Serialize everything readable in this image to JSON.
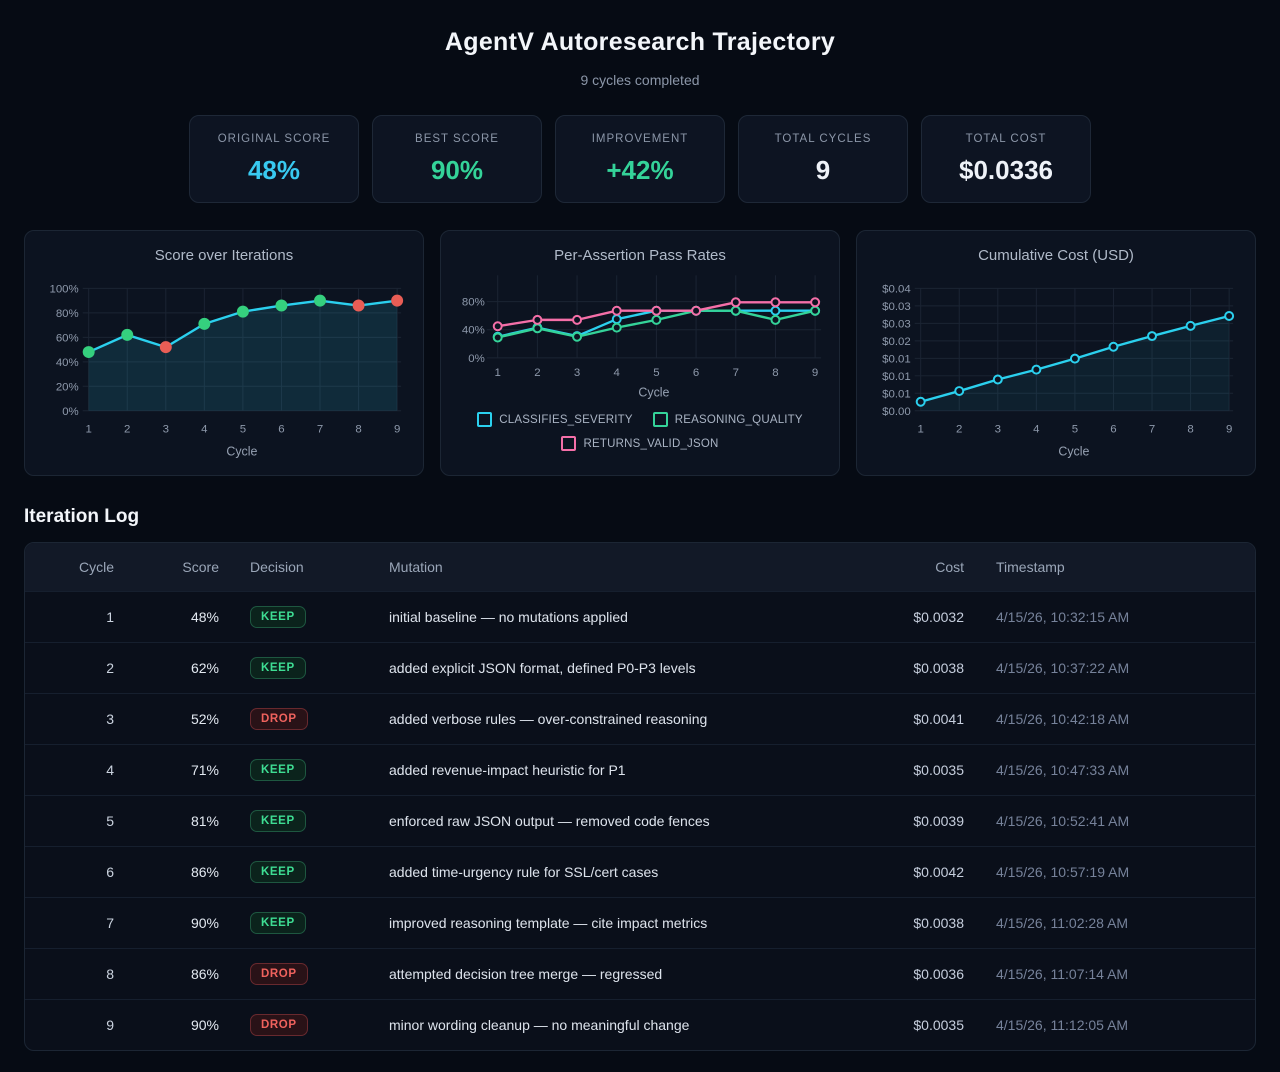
{
  "header": {
    "title": "AgentV Autoresearch Trajectory",
    "subtitle": "9 cycles completed"
  },
  "stats": [
    {
      "label": "ORIGINAL SCORE",
      "value": "48%",
      "color": "#38c9f0"
    },
    {
      "label": "BEST SCORE",
      "value": "90%",
      "color": "#34d399"
    },
    {
      "label": "IMPROVEMENT",
      "value": "+42%",
      "color": "#34d399"
    },
    {
      "label": "TOTAL CYCLES",
      "value": "9",
      "color": "#eef2f8"
    },
    {
      "label": "TOTAL COST",
      "value": "$0.0336",
      "color": "#eef2f8"
    }
  ],
  "chart_data": [
    {
      "type": "area",
      "title": "Score over Iterations",
      "xlabel": "Cycle",
      "x": [
        1,
        2,
        3,
        4,
        5,
        6,
        7,
        8,
        9
      ],
      "values": [
        48,
        62,
        52,
        71,
        81,
        86,
        90,
        86,
        90
      ],
      "ylim": [
        0,
        120
      ],
      "yticks": [
        {
          "v": 0,
          "label": "0%"
        },
        {
          "v": 20,
          "label": "20%"
        },
        {
          "v": 40,
          "label": "40%"
        },
        {
          "v": 60,
          "label": "60%"
        },
        {
          "v": 80,
          "label": "80%"
        },
        {
          "v": 100,
          "label": "100%"
        }
      ],
      "grid": true,
      "line_color": "#2bd0ee",
      "fill_color": "rgba(43,208,238,0.13)",
      "point_colors": [
        "#35d07e",
        "#35d07e",
        "#e85d55",
        "#35d07e",
        "#35d07e",
        "#35d07e",
        "#35d07e",
        "#e85d55",
        "#e85d55"
      ]
    },
    {
      "type": "line",
      "title": "Per-Assertion Pass Rates",
      "xlabel": "Cycle",
      "x": [
        1,
        2,
        3,
        4,
        5,
        6,
        7,
        8,
        9
      ],
      "ylim": [
        0,
        120
      ],
      "yticks": [
        {
          "v": 0,
          "label": "0%"
        },
        {
          "v": 40,
          "label": "40%"
        },
        {
          "v": 80,
          "label": "80%"
        }
      ],
      "grid": true,
      "legend_position": "bottom",
      "series": [
        {
          "name": "CLASSIFIES_SEVERITY",
          "color": "#2bd0ee",
          "values": [
            30,
            43,
            31,
            55,
            67,
            67,
            67,
            67,
            67
          ]
        },
        {
          "name": "REASONING_QUALITY",
          "color": "#34d399",
          "values": [
            29,
            42,
            30,
            43,
            54,
            67,
            67,
            54,
            67
          ]
        },
        {
          "name": "RETURNS_VALID_JSON",
          "color": "#f56fa8",
          "values": [
            45,
            54,
            54,
            67,
            67,
            67,
            79,
            79,
            79
          ]
        }
      ]
    },
    {
      "type": "area",
      "title": "Cumulative Cost (USD)",
      "xlabel": "Cycle",
      "x": [
        1,
        2,
        3,
        4,
        5,
        6,
        7,
        8,
        9
      ],
      "values": [
        0.0032,
        0.007,
        0.0111,
        0.0146,
        0.0185,
        0.0227,
        0.0265,
        0.0301,
        0.0336
      ],
      "ylim": [
        0,
        0.0434
      ],
      "yticks": [
        {
          "v": 0,
          "label": "$0.00"
        },
        {
          "v": 0.0062,
          "label": "$0.01"
        },
        {
          "v": 0.0124,
          "label": "$0.01"
        },
        {
          "v": 0.0186,
          "label": "$0.01"
        },
        {
          "v": 0.0248,
          "label": "$0.02"
        },
        {
          "v": 0.031,
          "label": "$0.03"
        },
        {
          "v": 0.0372,
          "label": "$0.03"
        },
        {
          "v": 0.0434,
          "label": "$0.04"
        }
      ],
      "grid": true,
      "line_color": "#2bd0ee",
      "fill_color": "rgba(43,208,238,0.07)",
      "point_style": "hollow"
    }
  ],
  "log": {
    "heading": "Iteration Log",
    "columns": [
      "Cycle",
      "Score",
      "Decision",
      "Mutation",
      "Cost",
      "Timestamp"
    ],
    "rows": [
      {
        "cycle": "1",
        "score": "48%",
        "decision": "KEEP",
        "mutation": "initial baseline — no mutations applied",
        "cost": "$0.0032",
        "timestamp": "4/15/26, 10:32:15 AM"
      },
      {
        "cycle": "2",
        "score": "62%",
        "decision": "KEEP",
        "mutation": "added explicit JSON format, defined P0-P3 levels",
        "cost": "$0.0038",
        "timestamp": "4/15/26, 10:37:22 AM"
      },
      {
        "cycle": "3",
        "score": "52%",
        "decision": "DROP",
        "mutation": "added verbose rules — over-constrained reasoning",
        "cost": "$0.0041",
        "timestamp": "4/15/26, 10:42:18 AM"
      },
      {
        "cycle": "4",
        "score": "71%",
        "decision": "KEEP",
        "mutation": "added revenue-impact heuristic for P1",
        "cost": "$0.0035",
        "timestamp": "4/15/26, 10:47:33 AM"
      },
      {
        "cycle": "5",
        "score": "81%",
        "decision": "KEEP",
        "mutation": "enforced raw JSON output — removed code fences",
        "cost": "$0.0039",
        "timestamp": "4/15/26, 10:52:41 AM"
      },
      {
        "cycle": "6",
        "score": "86%",
        "decision": "KEEP",
        "mutation": "added time-urgency rule for SSL/cert cases",
        "cost": "$0.0042",
        "timestamp": "4/15/26, 10:57:19 AM"
      },
      {
        "cycle": "7",
        "score": "90%",
        "decision": "KEEP",
        "mutation": "improved reasoning template — cite impact metrics",
        "cost": "$0.0038",
        "timestamp": "4/15/26, 11:02:28 AM"
      },
      {
        "cycle": "8",
        "score": "86%",
        "decision": "DROP",
        "mutation": "attempted decision tree merge — regressed",
        "cost": "$0.0036",
        "timestamp": "4/15/26, 11:07:14 AM"
      },
      {
        "cycle": "9",
        "score": "90%",
        "decision": "DROP",
        "mutation": "minor wording cleanup — no meaningful change",
        "cost": "$0.0035",
        "timestamp": "4/15/26, 11:12:05 AM"
      }
    ]
  },
  "colors": {
    "background": "#060b14",
    "card_bg": "#0d1422",
    "card_border": "#1e2837",
    "grid": "#1b2433",
    "accent_cyan": "#2bd0ee",
    "accent_green": "#34d399",
    "accent_pink": "#f56fa8",
    "point_keep_green": "#35d07e",
    "point_drop_red": "#e85d55",
    "keep_badge_text": "#3edd93",
    "drop_badge_text": "#ef625d"
  }
}
